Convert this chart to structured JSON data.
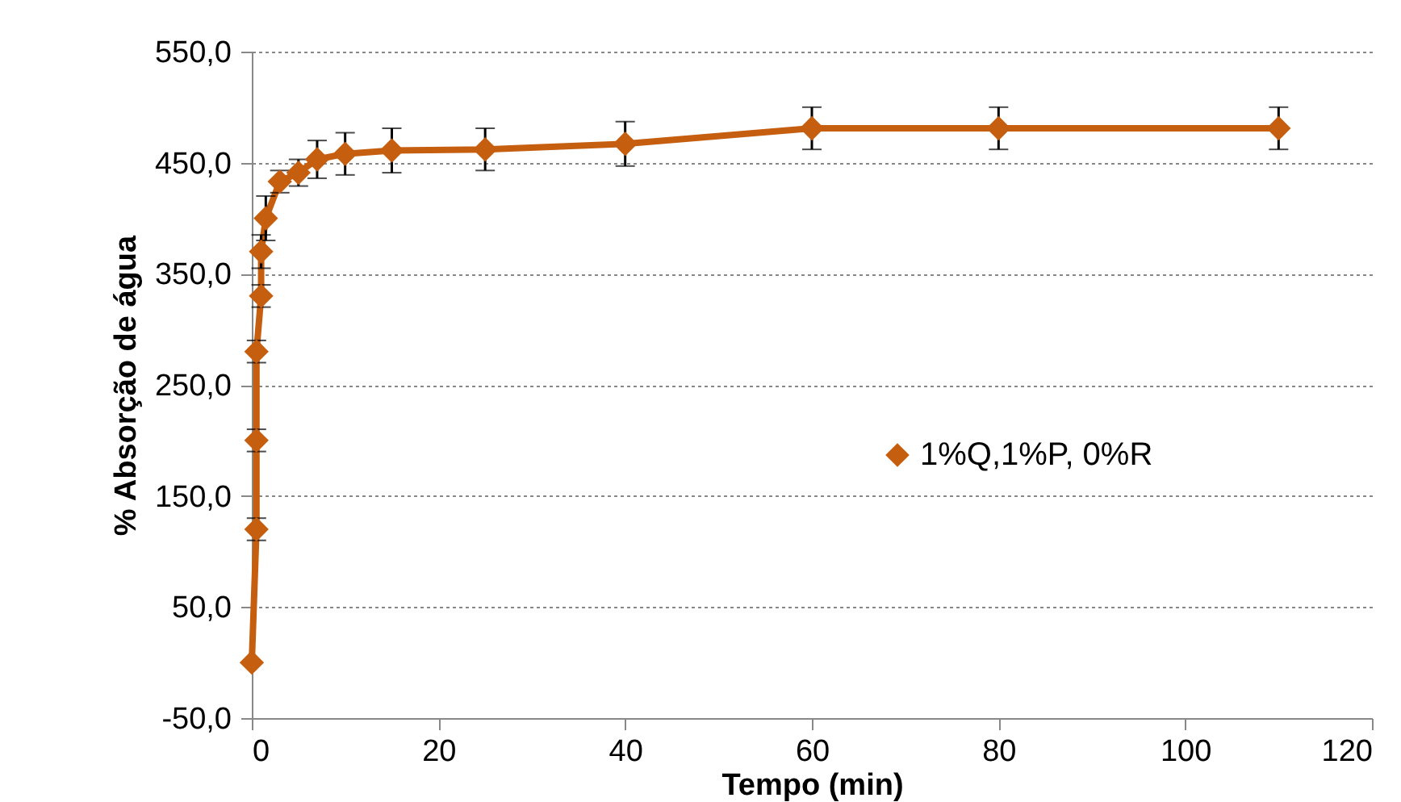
{
  "chart_data": {
    "type": "line",
    "xlabel": "Tempo (min)",
    "ylabel": "% Absorção de água",
    "x": [
      0,
      0.5,
      0.5,
      0.5,
      1,
      1,
      1.5,
      3,
      5,
      7,
      10,
      15,
      25,
      40,
      60,
      80,
      110
    ],
    "series": [
      {
        "name": "1%Q,1%P, 0%R",
        "color": "#c65e0f",
        "values": [
          0,
          120,
          200,
          280,
          330,
          370,
          400,
          433,
          441,
          453,
          458,
          461,
          462,
          467,
          481,
          481,
          481
        ],
        "errors": [
          null,
          10,
          10,
          10,
          10,
          15,
          20,
          10,
          12,
          17,
          19,
          20,
          19,
          20,
          19,
          19,
          19
        ]
      }
    ],
    "xlim": [
      0,
      120
    ],
    "xticks": [
      0,
      20,
      40,
      60,
      80,
      100,
      120
    ],
    "ylim": [
      -50,
      550
    ],
    "yticks": [
      {
        "value": -50,
        "label": "-50,0"
      },
      {
        "value": 50,
        "label": "50,0"
      },
      {
        "value": 150,
        "label": "150,0"
      },
      {
        "value": 250,
        "label": "250,0"
      },
      {
        "value": 350,
        "label": "350,0"
      },
      {
        "value": 450,
        "label": "450,0"
      },
      {
        "value": 550,
        "label": "550,0"
      }
    ],
    "grid": "y",
    "legend": "right",
    "marker": "diamond",
    "line_style": "solid"
  }
}
